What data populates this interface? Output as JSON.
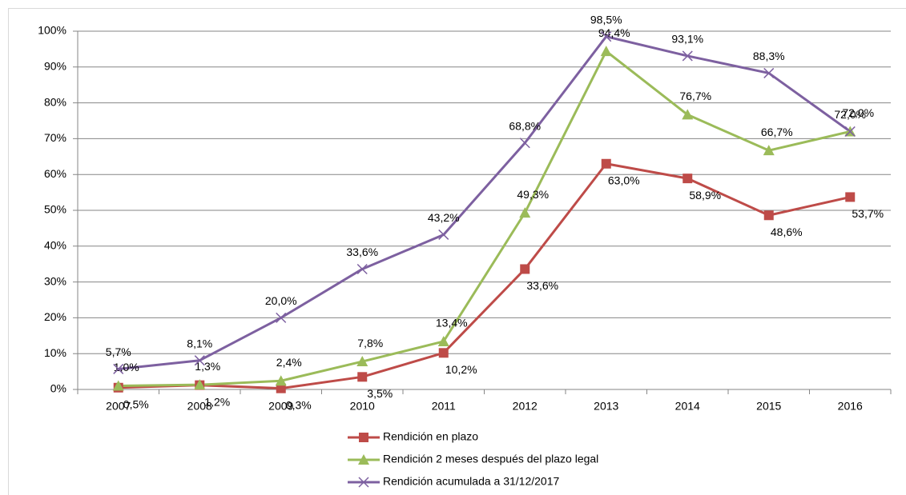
{
  "chart_data": {
    "type": "line",
    "categories": [
      "2007",
      "2008",
      "2009",
      "2010",
      "2011",
      "2012",
      "2013",
      "2014",
      "2015",
      "2016"
    ],
    "series": [
      {
        "name": "Rendición en plazo",
        "color": "#be4b48",
        "marker": "square",
        "values": [
          0.5,
          1.2,
          0.3,
          3.5,
          10.2,
          33.6,
          63.0,
          58.9,
          48.6,
          53.7
        ],
        "value_labels": [
          "0,5%",
          "1,2%",
          "0,3%",
          "3,5%",
          "10,2%",
          "33,6%",
          "63,0%",
          "58,9%",
          "48,6%",
          "53,7%"
        ]
      },
      {
        "name": "Rendición 2 meses después del plazo legal",
        "color": "#9bbb59",
        "marker": "triangle",
        "values": [
          1.0,
          1.3,
          2.4,
          7.8,
          13.4,
          49.3,
          94.4,
          76.7,
          66.7,
          72.0
        ],
        "value_labels": [
          "1,0%",
          "1,3%",
          "2,4%",
          "7,8%",
          "13,4%",
          "49,3%",
          "94,4%",
          "76,7%",
          "66,7%",
          "72,0%"
        ]
      },
      {
        "name": "Rendición acumulada a 31/12/2017",
        "color": "#7d60a0",
        "marker": "x",
        "values": [
          5.7,
          8.1,
          20.0,
          33.6,
          43.2,
          68.8,
          98.5,
          93.1,
          88.3,
          72.0
        ],
        "value_labels": [
          "5,7%",
          "8,1%",
          "20,0%",
          "33,6%",
          "43,2%",
          "68,8%",
          "98,5%",
          "93,1%",
          "88,3%",
          "72,0%"
        ]
      }
    ],
    "ylim": [
      0,
      100
    ],
    "yticks": [
      {
        "value": 0,
        "label": "0%"
      },
      {
        "value": 10,
        "label": "10%"
      },
      {
        "value": 20,
        "label": "20%"
      },
      {
        "value": 30,
        "label": "30%"
      },
      {
        "value": 40,
        "label": "40%"
      },
      {
        "value": 50,
        "label": "50%"
      },
      {
        "value": 60,
        "label": "60%"
      },
      {
        "value": 70,
        "label": "70%"
      },
      {
        "value": 80,
        "label": "80%"
      },
      {
        "value": 90,
        "label": "90%"
      },
      {
        "value": 100,
        "label": "100%"
      }
    ],
    "grid": true,
    "legend": "bottom"
  }
}
